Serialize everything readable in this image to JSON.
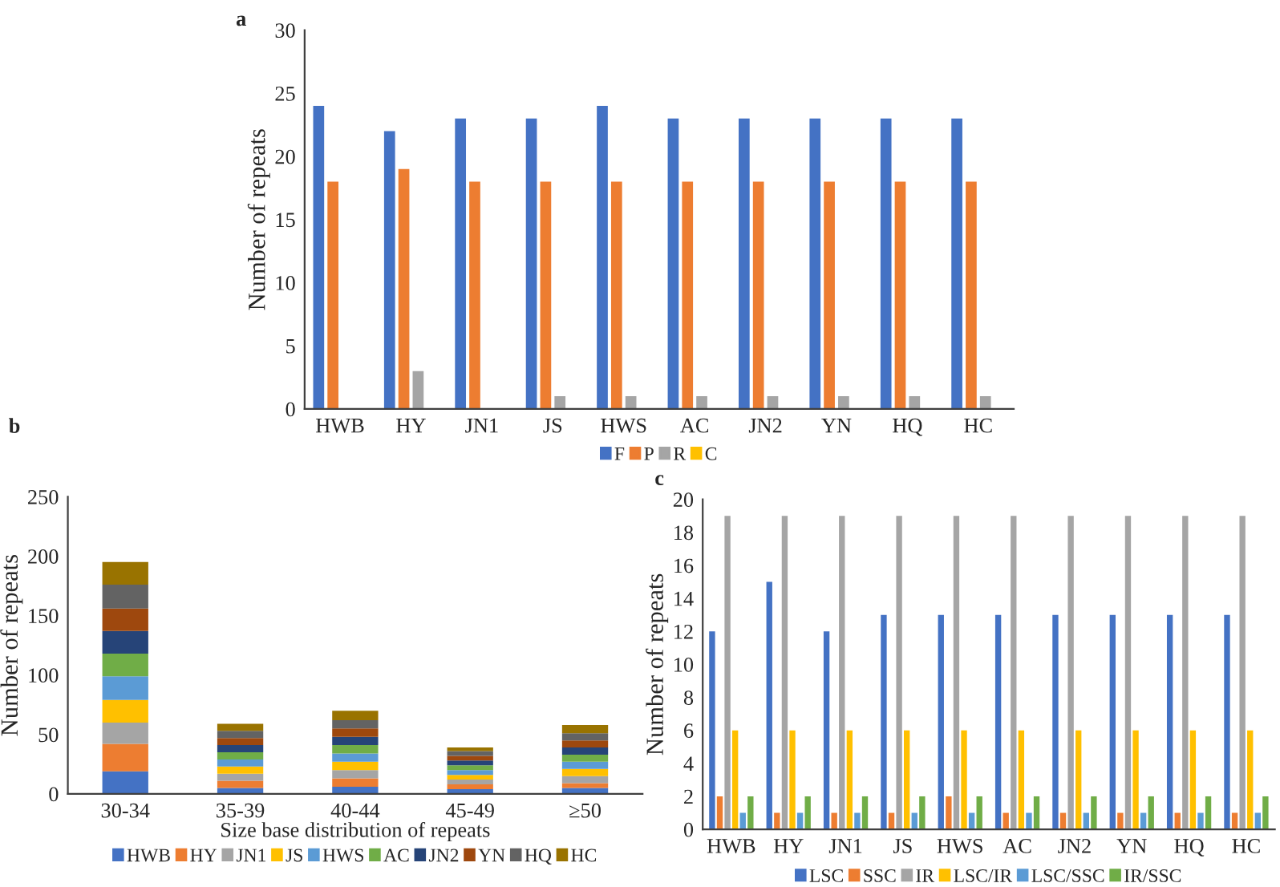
{
  "chart_data": [
    {
      "type": "bar",
      "title": "a",
      "ylabel": "Number of repeats",
      "categories": [
        "HWB",
        "HY",
        "JN1",
        "JS",
        "HWS",
        "AC",
        "JN2",
        "YN",
        "HQ",
        "HC"
      ],
      "ylim": [
        0,
        30
      ],
      "yticks": [
        0,
        5,
        10,
        15,
        20,
        25,
        30
      ],
      "grid": false,
      "legend": "bottom",
      "series": [
        {
          "name": "F",
          "color": "#4472c4",
          "values": [
            24,
            22,
            23,
            23,
            24,
            23,
            23,
            23,
            23,
            23
          ]
        },
        {
          "name": "P",
          "color": "#ed7d31",
          "values": [
            18,
            19,
            18,
            18,
            18,
            18,
            18,
            18,
            18,
            18
          ]
        },
        {
          "name": "R",
          "color": "#a5a5a5",
          "values": [
            0,
            3,
            0,
            1,
            1,
            1,
            1,
            1,
            1,
            1
          ]
        },
        {
          "name": "C",
          "color": "#ffc000",
          "values": [
            0,
            0,
            0,
            0,
            0,
            0,
            0,
            0,
            0,
            0
          ]
        }
      ]
    },
    {
      "type": "bar",
      "title": "b",
      "xlabel": "Size base distribution of repeats",
      "ylabel": "Number of repeats",
      "categories": [
        "30-34",
        "35-39",
        "40-44",
        "45-49",
        "≥50"
      ],
      "stacked": true,
      "ylim": [
        0,
        250
      ],
      "yticks": [
        0,
        50,
        100,
        150,
        200,
        250
      ],
      "grid": false,
      "legend": "bottom",
      "series": [
        {
          "name": "HWB",
          "color": "#4472c4",
          "values": [
            19,
            5,
            6,
            4,
            5
          ]
        },
        {
          "name": "HY",
          "color": "#ed7d31",
          "values": [
            23,
            6,
            7,
            4,
            4
          ]
        },
        {
          "name": "JN1",
          "color": "#a5a5a5",
          "values": [
            18,
            6,
            7,
            4,
            6
          ]
        },
        {
          "name": "JS",
          "color": "#ffc000",
          "values": [
            19,
            6,
            7,
            4,
            6
          ]
        },
        {
          "name": "HWS",
          "color": "#5b9bd5",
          "values": [
            20,
            6,
            7,
            4,
            6
          ]
        },
        {
          "name": "AC",
          "color": "#70ad47",
          "values": [
            19,
            6,
            7,
            4,
            6
          ]
        },
        {
          "name": "JN2",
          "color": "#264478",
          "values": [
            19,
            6,
            7,
            4,
            6
          ]
        },
        {
          "name": "YN",
          "color": "#9e480e",
          "values": [
            19,
            6,
            7,
            4,
            6
          ]
        },
        {
          "name": "HQ",
          "color": "#636363",
          "values": [
            20,
            6,
            7,
            4,
            6
          ]
        },
        {
          "name": "HC",
          "color": "#997300",
          "values": [
            19,
            6,
            8,
            3,
            7
          ]
        }
      ]
    },
    {
      "type": "bar",
      "title": "c",
      "ylabel": "Number of repeats",
      "categories": [
        "HWB",
        "HY",
        "JN1",
        "JS",
        "HWS",
        "AC",
        "JN2",
        "YN",
        "HQ",
        "HC"
      ],
      "ylim": [
        0,
        20
      ],
      "yticks": [
        0,
        2,
        4,
        6,
        8,
        10,
        12,
        14,
        16,
        18,
        20
      ],
      "grid": false,
      "legend": "bottom",
      "series": [
        {
          "name": "LSC",
          "color": "#4472c4",
          "values": [
            12,
            15,
            12,
            13,
            13,
            13,
            13,
            13,
            13,
            13
          ]
        },
        {
          "name": "SSC",
          "color": "#ed7d31",
          "values": [
            2,
            1,
            1,
            1,
            2,
            1,
            1,
            1,
            1,
            1
          ]
        },
        {
          "name": "IR",
          "color": "#a5a5a5",
          "values": [
            19,
            19,
            19,
            19,
            19,
            19,
            19,
            19,
            19,
            19
          ]
        },
        {
          "name": "LSC/IR",
          "color": "#ffc000",
          "values": [
            6,
            6,
            6,
            6,
            6,
            6,
            6,
            6,
            6,
            6
          ]
        },
        {
          "name": "LSC/SSC",
          "color": "#5b9bd5",
          "values": [
            1,
            1,
            1,
            1,
            1,
            1,
            1,
            1,
            1,
            1
          ]
        },
        {
          "name": "IR/SSC",
          "color": "#70ad47",
          "values": [
            2,
            2,
            2,
            2,
            2,
            2,
            2,
            2,
            2,
            2
          ]
        }
      ]
    }
  ]
}
